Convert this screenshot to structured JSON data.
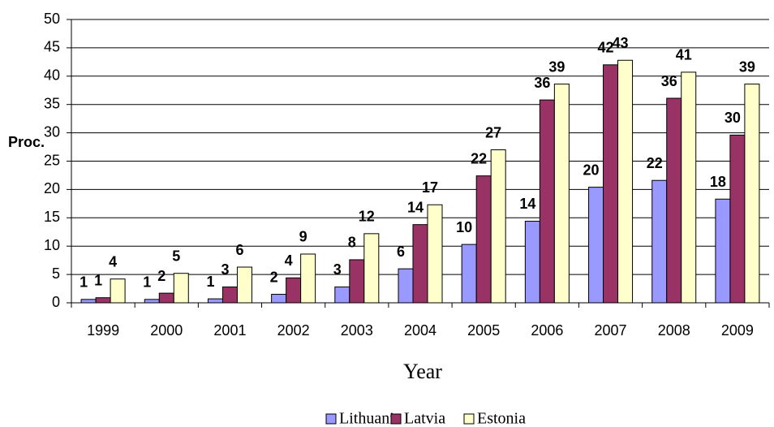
{
  "chart_data": {
    "type": "bar",
    "x_label": "Year",
    "y_label": "Proc.",
    "categories": [
      "1999",
      "2000",
      "2001",
      "2002",
      "2003",
      "2004",
      "2005",
      "2006",
      "2007",
      "2008",
      "2009"
    ],
    "series": [
      {
        "name": "Lithuania",
        "color": "#9999ff",
        "values": [
          0.6,
          0.6,
          0.7,
          1.5,
          2.8,
          6,
          10.3,
          14.4,
          20.4,
          21.6,
          18.3
        ],
        "value_labels": [
          "1",
          "1",
          "1",
          "2",
          "3",
          "6",
          "10",
          "14",
          "20",
          "22",
          "18"
        ]
      },
      {
        "name": "Latvia",
        "color": "#993366",
        "values": [
          0.9,
          1.7,
          2.8,
          4.4,
          7.6,
          13.8,
          22.4,
          35.8,
          42,
          36.1,
          29.6
        ],
        "value_labels": [
          "1",
          "2",
          "3",
          "4",
          "8",
          "14",
          "22",
          "36",
          "42",
          "36",
          "30"
        ]
      },
      {
        "name": "Estonia",
        "color": "#ffffcc",
        "values": [
          4.2,
          5.2,
          6.3,
          8.6,
          12.2,
          17.3,
          27,
          38.6,
          42.8,
          40.7,
          38.6
        ],
        "value_labels": [
          "4",
          "5",
          "6",
          "9",
          "12",
          "17",
          "27",
          "39",
          "43",
          "41",
          "39"
        ]
      }
    ],
    "ylim": [
      0,
      50
    ],
    "yticks": [
      0,
      5,
      10,
      15,
      20,
      25,
      30,
      35,
      40,
      45,
      50
    ],
    "grid": true
  }
}
